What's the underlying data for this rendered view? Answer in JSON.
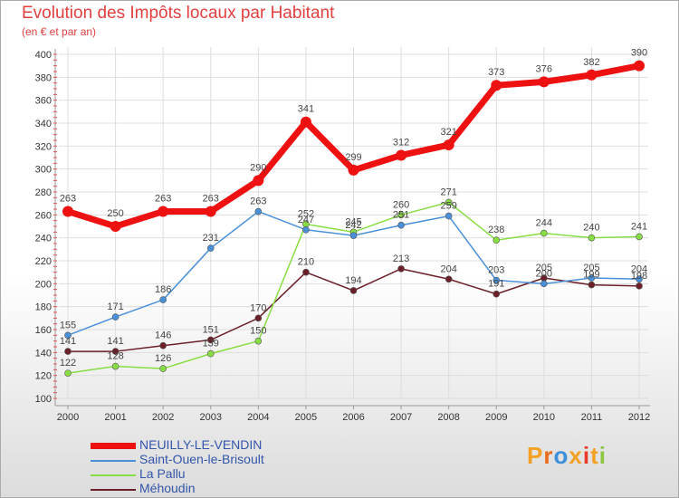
{
  "title": "Evolution des Impôts locaux par Habitant",
  "subtitle": "(en € et par an)",
  "logo": {
    "text": "Proxiti",
    "letters": [
      "P",
      "r",
      "o",
      "x",
      "i",
      "t",
      "i"
    ],
    "colors": [
      "#f4a024",
      "#e86a1c",
      "#3c8fd8",
      "#f4a024",
      "#e8392b",
      "#f4a024",
      "#8cc63f"
    ]
  },
  "chart_data": {
    "type": "line",
    "x": [
      "2000",
      "2001",
      "2002",
      "2003",
      "2004",
      "2005",
      "2006",
      "2007",
      "2008",
      "2009",
      "2010",
      "2011",
      "2012"
    ],
    "ylim": [
      100,
      400
    ],
    "yticks": [
      "100",
      "120",
      "140",
      "160",
      "180",
      "200",
      "220",
      "240",
      "260",
      "280",
      "300",
      "320",
      "340",
      "360",
      "380",
      "400"
    ],
    "series": [
      {
        "name": "NEUILLY-LE-VENDIN",
        "color": "#ee1111",
        "values": [
          263,
          250,
          263,
          263,
          290,
          341,
          299,
          312,
          321,
          373,
          376,
          382,
          390
        ],
        "labels": [
          "263",
          "250",
          "263",
          "263",
          "290",
          "341",
          "299",
          "312",
          "321",
          "373",
          "376",
          "382",
          "390"
        ]
      },
      {
        "name": "Saint-Ouen-le-Brisoult",
        "color": "#4a90d9",
        "values": [
          155,
          171,
          186,
          231,
          263,
          247,
          242,
          251,
          259,
          203,
          200,
          205,
          204
        ],
        "labels": [
          "155",
          "171",
          "186",
          "231",
          "263",
          "247",
          "242",
          "251",
          "259",
          "203",
          "200",
          "205",
          "204"
        ]
      },
      {
        "name": "La Pallu",
        "color": "#88dd44",
        "values": [
          122,
          128,
          126,
          139,
          150,
          252,
          245,
          260,
          271,
          238,
          244,
          240,
          241
        ],
        "labels": [
          "122",
          "128",
          "126",
          "139",
          "150",
          "252",
          "245",
          "260",
          "271",
          "238",
          "244",
          "240",
          "241"
        ]
      },
      {
        "name": "Méhoudin",
        "color": "#6b1f28",
        "values": [
          141,
          141,
          146,
          151,
          170,
          210,
          194,
          213,
          204,
          191,
          205,
          199,
          198
        ],
        "labels": [
          "141",
          "141",
          "146",
          "151",
          "170",
          "210",
          "194",
          "213",
          "204",
          "191",
          "205",
          "199",
          "198"
        ]
      }
    ]
  }
}
